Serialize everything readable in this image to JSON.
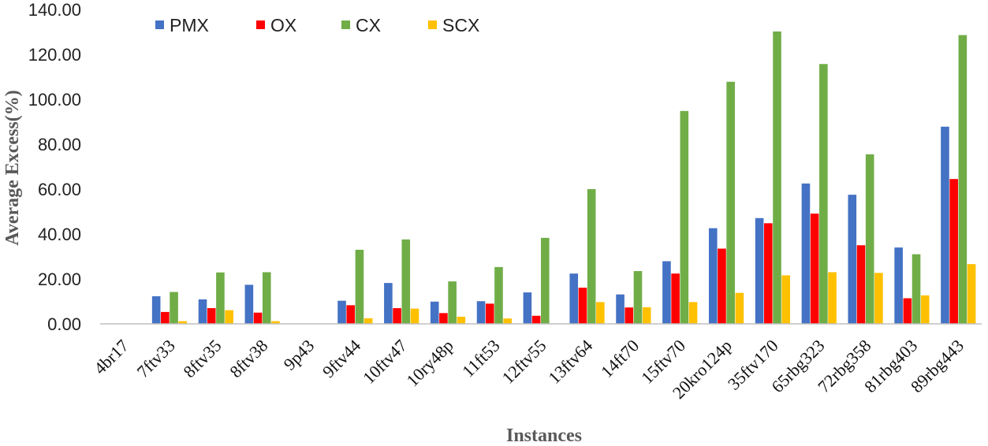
{
  "chart_data": {
    "type": "bar",
    "title": "",
    "xlabel": "Instances",
    "ylabel": "Average Excess(%)",
    "ylim": [
      0,
      140
    ],
    "yticks": [
      "0.00",
      "20.00",
      "40.00",
      "60.00",
      "80.00",
      "100.00",
      "120.00",
      "140.00"
    ],
    "grid": false,
    "legend_position": "top-left",
    "categories": [
      "4br17",
      "7ftv33",
      "8ftv35",
      "8ftv38",
      "9p43",
      "9ftv44",
      "10ftv47",
      "10ry48p",
      "11ft53",
      "12ftv55",
      "13ftv64",
      "14ft70",
      "15ftv70",
      "20kro124p",
      "35ftv170",
      "65rbg323",
      "72rbg358",
      "81rbg403",
      "89rbg443"
    ],
    "series": [
      {
        "name": "PMX",
        "color": "#4472C4",
        "values": [
          0,
          12.3,
          10.9,
          17.4,
          0,
          10.3,
          18.2,
          9.9,
          10.1,
          14.0,
          22.4,
          13.1,
          27.9,
          42.6,
          47.1,
          62.5,
          57.5,
          34.0,
          87.8
        ]
      },
      {
        "name": "OX",
        "color": "#FF0000",
        "values": [
          0,
          5.3,
          7.0,
          5.0,
          0,
          8.3,
          7.0,
          4.8,
          9.0,
          3.6,
          16.1,
          7.3,
          22.4,
          33.5,
          44.8,
          49.1,
          35.0,
          11.4,
          64.5
        ]
      },
      {
        "name": "CX",
        "color": "#70AD47",
        "values": [
          0,
          14.2,
          22.9,
          23.0,
          0,
          33.0,
          37.6,
          18.9,
          25.3,
          38.3,
          60.0,
          23.5,
          94.8,
          107.8,
          130.2,
          115.7,
          75.5,
          31.0,
          128.6
        ]
      },
      {
        "name": "SCX",
        "color": "#FFC000",
        "values": [
          0,
          1.2,
          6.1,
          1.2,
          0,
          2.5,
          6.8,
          3.2,
          2.4,
          0,
          9.7,
          7.4,
          9.7,
          13.8,
          21.6,
          23.0,
          22.7,
          12.7,
          26.6
        ]
      }
    ]
  }
}
